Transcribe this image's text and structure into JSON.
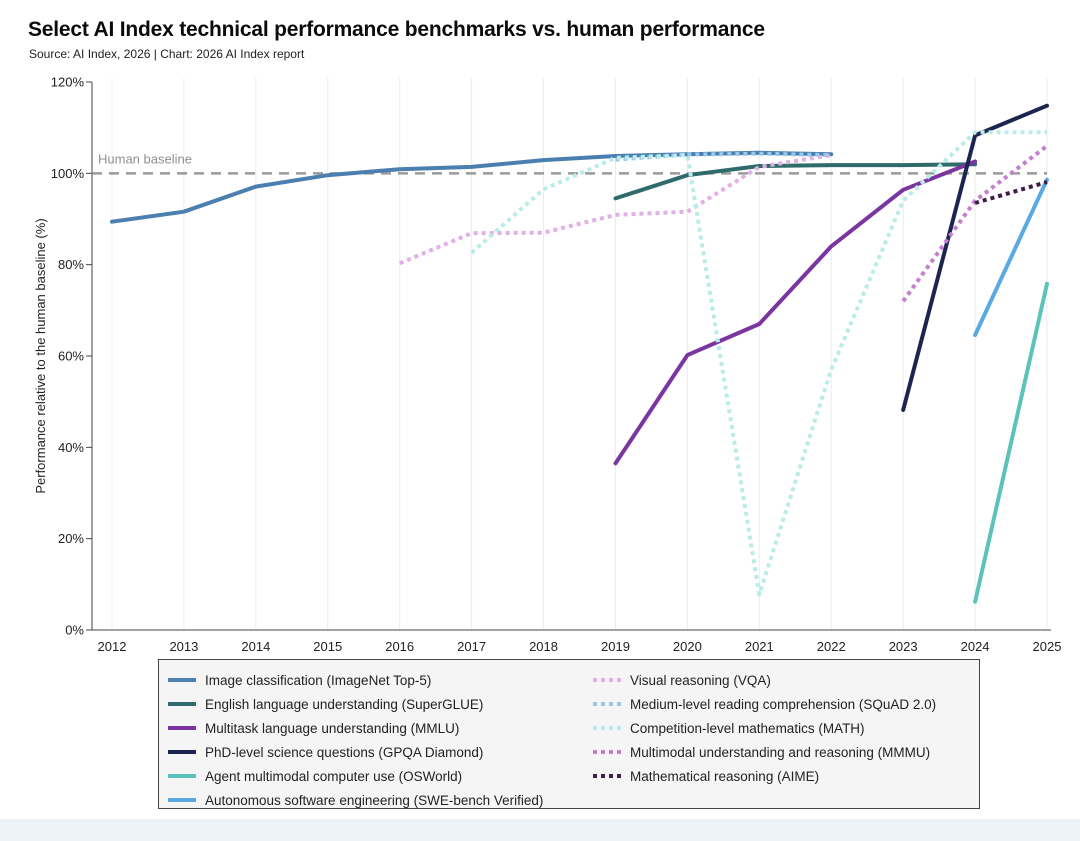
{
  "chart_data": {
    "type": "line",
    "title": "Select AI Index technical performance benchmarks vs. human performance",
    "subtitle": "Source: AI Index, 2026 | Chart: 2026 AI Index report",
    "xlabel": "",
    "ylabel": "Performance relative to the human baseline (%)",
    "xlim": [
      2012,
      2025
    ],
    "ylim": [
      0,
      120
    ],
    "x_ticks": [
      "2012",
      "2013",
      "2014",
      "2015",
      "2016",
      "2017",
      "2018",
      "2019",
      "2020",
      "2021",
      "2022",
      "2023",
      "2024",
      "2025"
    ],
    "y_ticks": [
      0,
      20,
      40,
      60,
      80,
      100,
      120
    ],
    "y_tick_labels": [
      "0%",
      "20%",
      "40%",
      "60%",
      "80%",
      "100%",
      "120%"
    ],
    "grid": "vertical",
    "baseline": {
      "label": "Human baseline",
      "value": 100,
      "color": "#9a9a9a"
    },
    "legend_position": "bottom",
    "series": [
      {
        "name": "Image classification (ImageNet Top-5)",
        "color": "#4a7fb0",
        "style": "solid",
        "points": [
          [
            2012,
            89.4
          ],
          [
            2013,
            91.6
          ],
          [
            2014,
            97.1
          ],
          [
            2015,
            99.6
          ],
          [
            2016,
            100.9
          ],
          [
            2017,
            101.4
          ],
          [
            2018,
            102.9
          ],
          [
            2019,
            103.8
          ],
          [
            2020,
            104.2
          ],
          [
            2021,
            104.5
          ],
          [
            2022,
            104.2
          ]
        ]
      },
      {
        "name": "English language understanding (SuperGLUE)",
        "color": "#2f6b6b",
        "style": "solid",
        "points": [
          [
            2019,
            94.5
          ],
          [
            2020,
            99.6
          ],
          [
            2021,
            101.6
          ],
          [
            2022,
            101.8
          ],
          [
            2023,
            101.8
          ],
          [
            2024,
            102.0
          ]
        ]
      },
      {
        "name": "Multitask language understanding (MMLU)",
        "color": "#7b35a0",
        "style": "solid",
        "points": [
          [
            2019,
            36.5
          ],
          [
            2020,
            60.2
          ],
          [
            2021,
            67.0
          ],
          [
            2022,
            84.0
          ],
          [
            2023,
            96.4
          ],
          [
            2024,
            102.6
          ]
        ]
      },
      {
        "name": "PhD-level science questions (GPQA Diamond)",
        "color": "#1c2550",
        "style": "solid",
        "points": [
          [
            2023,
            48.2
          ],
          [
            2024,
            108.3
          ],
          [
            2025,
            114.8
          ]
        ]
      },
      {
        "name": "Agent multimodal computer use (OSWorld)",
        "color": "#5cc2bb",
        "style": "solid",
        "points": [
          [
            2024,
            6.2
          ],
          [
            2025,
            75.8
          ]
        ]
      },
      {
        "name": "Autonomous software engineering (SWE-bench Verified)",
        "color": "#5aa9e3",
        "style": "solid",
        "points": [
          [
            2024,
            64.6
          ],
          [
            2025,
            98.6
          ]
        ]
      },
      {
        "name": "Visual reasoning (VQA)",
        "color": "#e2b0e6",
        "style": "dotted",
        "points": [
          [
            2016,
            80.3
          ],
          [
            2017,
            86.9
          ],
          [
            2018,
            87.0
          ],
          [
            2019,
            90.9
          ],
          [
            2020,
            91.6
          ],
          [
            2021,
            101.4
          ],
          [
            2022,
            104.0
          ]
        ]
      },
      {
        "name": "Medium-level reading comprehension (SQuAD 2.0)",
        "color": "#9ac8ea",
        "style": "dotted",
        "points": [
          [
            2019,
            103.0
          ],
          [
            2020,
            104.1
          ],
          [
            2021,
            104.3
          ],
          [
            2022,
            104.0
          ]
        ]
      },
      {
        "name": "Competition-level mathematics (MATH)",
        "color": "#b8ece8",
        "style": "dotted",
        "points": [
          [
            2017,
            82.6
          ],
          [
            2018,
            96.5
          ],
          [
            2019,
            103.4
          ],
          [
            2020,
            104.0
          ],
          [
            2021,
            7.8
          ],
          [
            2022,
            57.0
          ],
          [
            2023,
            94.0
          ],
          [
            2024,
            109.0
          ],
          [
            2025,
            109.0
          ]
        ]
      },
      {
        "name": "Multimodal understanding and reasoning (MMMU)",
        "color": "#c57fd0",
        "style": "dotted",
        "points": [
          [
            2023,
            72.0
          ],
          [
            2024,
            94.0
          ],
          [
            2025,
            106.0
          ]
        ]
      },
      {
        "name": "Mathematical reasoning (AIME)",
        "color": "#3d1d48",
        "style": "dotted",
        "points": [
          [
            2024,
            93.5
          ],
          [
            2025,
            98.1
          ]
        ]
      }
    ]
  }
}
